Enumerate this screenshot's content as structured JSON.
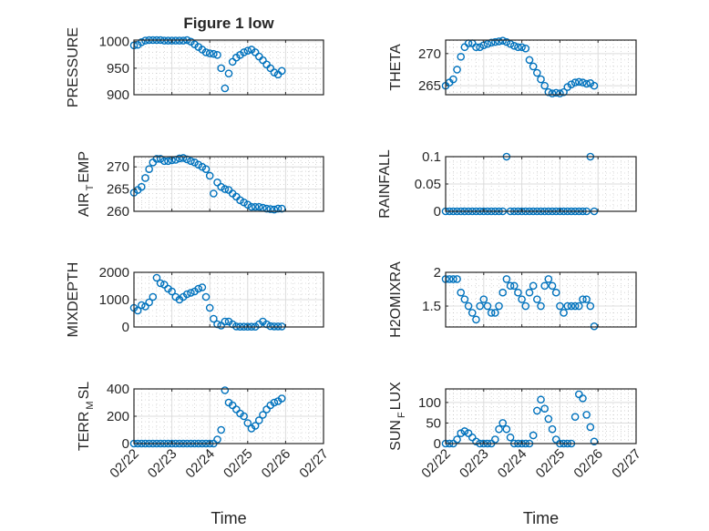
{
  "figure": {
    "title": "Figure 1 low",
    "xlabel": "Time",
    "marker_color": "#0072BD"
  },
  "chart_data": [
    {
      "type": "scatter",
      "id": "pressure",
      "ylabel": [
        "PRESSURE"
      ],
      "ylim": [
        900,
        1003
      ],
      "yticks": [
        900,
        950,
        1000
      ],
      "x_start": 0,
      "x_step": 0.1,
      "x_units": "days since 02/22",
      "values": [
        993,
        994,
        999,
        1002,
        1003,
        1003,
        1003,
        1003,
        1002,
        1002,
        1002,
        1002,
        1002,
        1002,
        1003,
        1000,
        995,
        990,
        985,
        980,
        978,
        977,
        975,
        950,
        912,
        940,
        962,
        970,
        975,
        980,
        983,
        985,
        980,
        972,
        965,
        957,
        950,
        942,
        938,
        945
      ]
    },
    {
      "type": "scatter",
      "id": "theta",
      "ylabel": [
        "THETA"
      ],
      "ylim": [
        263.6,
        272.1
      ],
      "yticks": [
        265,
        270
      ],
      "x_start": 0,
      "x_step": 0.1,
      "values": [
        265,
        265.5,
        266,
        267.5,
        269.5,
        271,
        271.6,
        271.6,
        271,
        271,
        271.3,
        271.5,
        271.7,
        271.8,
        271.9,
        272,
        271.8,
        271.5,
        271.2,
        271,
        271,
        270.8,
        269,
        268,
        267,
        266,
        265,
        264,
        263.8,
        263.9,
        263.8,
        264,
        264.8,
        265.2,
        265.5,
        265.6,
        265.5,
        265.3,
        265.4,
        265
      ]
    },
    {
      "type": "scatter",
      "id": "air_temp",
      "ylabel": [
        "AIR",
        "T",
        "EMP"
      ],
      "ylim": [
        260,
        272.3
      ],
      "yticks": [
        260,
        265,
        270
      ],
      "x_start": 0,
      "x_step": 0.1,
      "values": [
        264.2,
        264.8,
        265.5,
        267.5,
        269.5,
        271,
        271.8,
        271.8,
        271.3,
        271.3,
        271.5,
        271.6,
        271.9,
        272,
        271.7,
        271.3,
        271,
        270.5,
        270,
        269.5,
        268,
        264,
        266.5,
        265.5,
        265,
        264.8,
        264,
        263.3,
        262.5,
        262,
        261.5,
        261,
        261,
        261,
        260.8,
        260.6,
        260.5,
        260.4,
        260.6,
        260.6
      ]
    },
    {
      "type": "scatter",
      "id": "rainfall",
      "ylabel": [
        "RAINFALL"
      ],
      "ylim": [
        0,
        0.1
      ],
      "yticks": [
        0,
        0.05,
        0.1
      ],
      "x_start": 0,
      "x_step": 0.1,
      "values": [
        0,
        0,
        0,
        0,
        0,
        0,
        0,
        0,
        0,
        0,
        0,
        0,
        0,
        0,
        0,
        0,
        0.1,
        0,
        0,
        0,
        0,
        0,
        0,
        0,
        0,
        0,
        0,
        0,
        0,
        0,
        0,
        0,
        0,
        0,
        0,
        0,
        0,
        0,
        0.1,
        0
      ]
    },
    {
      "type": "scatter",
      "id": "mixdepth",
      "ylabel": [
        "MIXDEPTH"
      ],
      "ylim": [
        0,
        2000
      ],
      "yticks": [
        0,
        1000,
        2000
      ],
      "x_start": 0,
      "x_step": 0.1,
      "values": [
        700,
        600,
        800,
        750,
        900,
        1100,
        1800,
        1600,
        1550,
        1400,
        1300,
        1100,
        1000,
        1100,
        1200,
        1250,
        1300,
        1400,
        1450,
        1100,
        700,
        300,
        100,
        50,
        200,
        200,
        100,
        20,
        10,
        10,
        10,
        10,
        10,
        100,
        200,
        100,
        30,
        20,
        20,
        20
      ]
    },
    {
      "type": "scatter",
      "id": "h2omixra",
      "ylabel": [
        "H2OMIXRA"
      ],
      "ylim": [
        1.19,
        2
      ],
      "yticks": [
        1.5,
        2
      ],
      "x_start": 0,
      "x_step": 0.1,
      "values": [
        1.9,
        1.9,
        1.9,
        1.9,
        1.7,
        1.6,
        1.5,
        1.4,
        1.3,
        1.5,
        1.6,
        1.5,
        1.4,
        1.4,
        1.5,
        1.7,
        1.9,
        1.8,
        1.8,
        1.7,
        1.6,
        1.5,
        1.7,
        1.8,
        1.6,
        1.5,
        1.8,
        1.9,
        1.8,
        1.7,
        1.5,
        1.4,
        1.5,
        1.5,
        1.5,
        1.5,
        1.6,
        1.6,
        1.5,
        1.2
      ]
    },
    {
      "type": "scatter",
      "id": "terr_msl",
      "ylabel": [
        "TERR",
        "M",
        "SL"
      ],
      "ylim": [
        0,
        400
      ],
      "yticks": [
        0,
        200,
        400
      ],
      "x_start": 0,
      "x_step": 0.1,
      "values": [
        0,
        0,
        0,
        0,
        0,
        0,
        0,
        0,
        0,
        0,
        0,
        0,
        0,
        0,
        0,
        0,
        0,
        0,
        0,
        0,
        0,
        0,
        30,
        100,
        390,
        300,
        280,
        250,
        220,
        200,
        150,
        110,
        130,
        170,
        210,
        250,
        280,
        300,
        310,
        330
      ]
    },
    {
      "type": "scatter",
      "id": "sun_flux",
      "ylabel": [
        "SUN",
        "F",
        "LUX"
      ],
      "ylim": [
        0,
        133
      ],
      "yticks": [
        0,
        50,
        100
      ],
      "x_start": 0,
      "x_step": 0.1,
      "values": [
        0,
        0,
        0,
        10,
        25,
        30,
        25,
        15,
        5,
        0,
        0,
        0,
        0,
        10,
        35,
        50,
        35,
        15,
        0,
        0,
        0,
        0,
        0,
        20,
        80,
        107,
        85,
        60,
        35,
        10,
        0,
        0,
        0,
        0,
        65,
        120,
        110,
        70,
        40,
        5
      ]
    }
  ],
  "xaxis": {
    "xlim": [
      0,
      5
    ],
    "ticks": [
      0,
      1,
      2,
      3,
      4,
      5
    ],
    "tick_labels": [
      "02/22",
      "02/23",
      "02/24",
      "02/25",
      "02/26",
      "02/27"
    ]
  }
}
